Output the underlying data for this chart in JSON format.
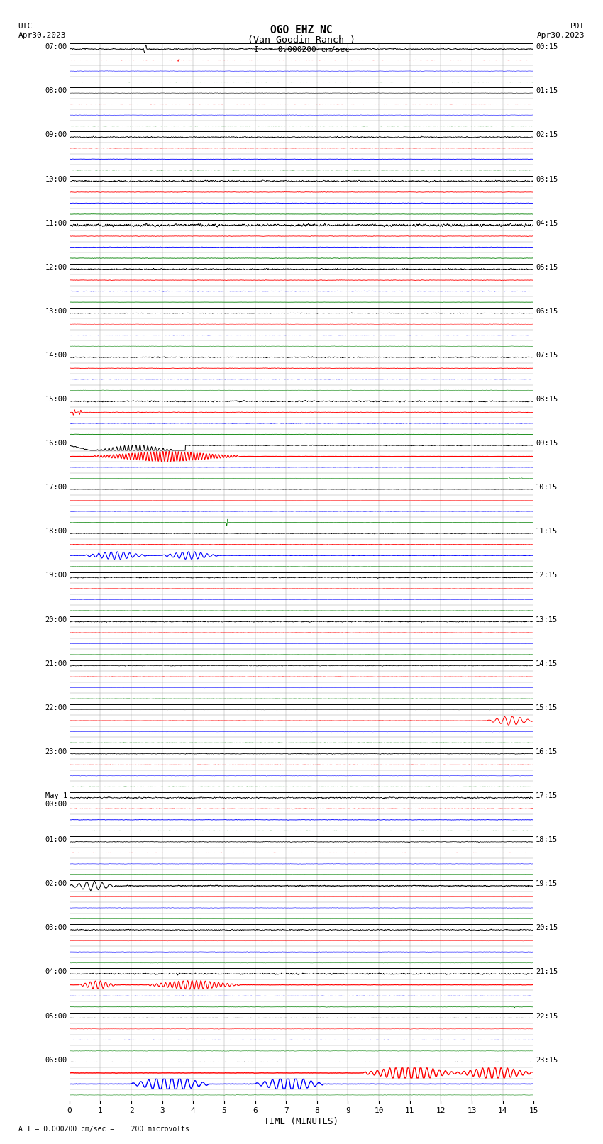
{
  "title_line1": "OGO EHZ NC",
  "title_line2": "(Van Goodin Ranch )",
  "scale_text": "I  = 0.000200 cm/sec",
  "bottom_text": "A I = 0.000200 cm/sec =    200 microvolts",
  "utc_label": "UTC",
  "utc_date": "Apr30,2023",
  "pdt_label": "PDT",
  "pdt_date": "Apr30,2023",
  "xlabel": "TIME (MINUTES)",
  "xmin": 0,
  "xmax": 15,
  "xticks": [
    0,
    1,
    2,
    3,
    4,
    5,
    6,
    7,
    8,
    9,
    10,
    11,
    12,
    13,
    14,
    15
  ],
  "num_row_groups": 24,
  "traces_per_group": 4,
  "bg_color": "#ffffff",
  "noise_seed": 42,
  "left_labels": [
    "07:00",
    "08:00",
    "09:00",
    "10:00",
    "11:00",
    "12:00",
    "13:00",
    "14:00",
    "15:00",
    "16:00",
    "17:00",
    "18:00",
    "19:00",
    "20:00",
    "21:00",
    "22:00",
    "23:00",
    "May 1\n00:00",
    "01:00",
    "02:00",
    "03:00",
    "04:00",
    "05:00",
    "06:00"
  ],
  "right_labels": [
    "00:15",
    "01:15",
    "02:15",
    "03:15",
    "04:15",
    "05:15",
    "06:15",
    "07:15",
    "08:15",
    "09:15",
    "10:15",
    "11:15",
    "12:15",
    "13:15",
    "14:15",
    "15:15",
    "16:15",
    "17:15",
    "18:15",
    "19:15",
    "20:15",
    "21:15",
    "22:15",
    "23:15"
  ]
}
